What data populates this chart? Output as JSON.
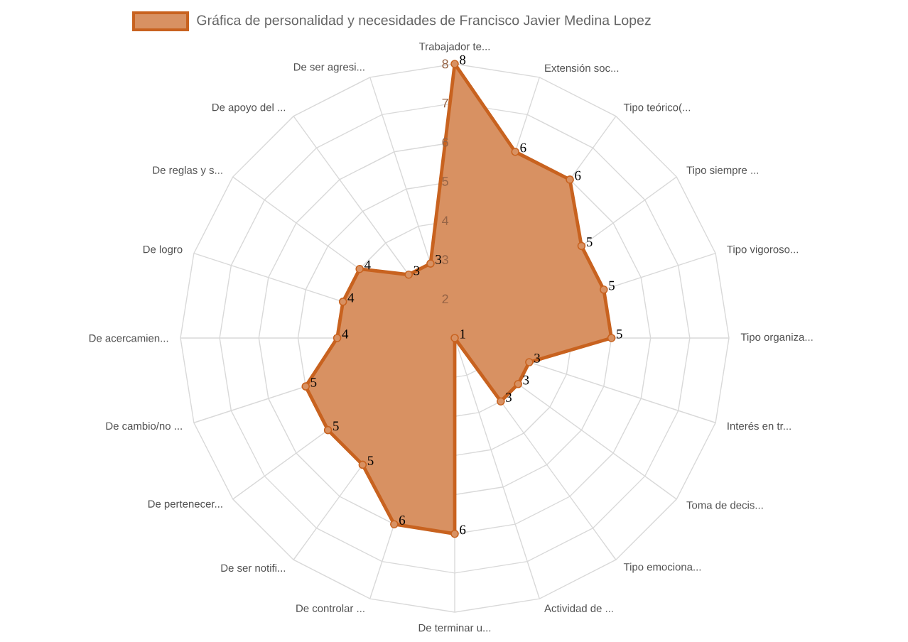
{
  "chart_data": {
    "type": "radar",
    "categories": [
      "Trabajador te...",
      "Extensión soc...",
      "Tipo teórico(...",
      "Tipo siempre ...",
      "Tipo vigoroso...",
      "Tipo organiza...",
      "Interés en tr...",
      "Toma de decis...",
      "Tipo emociona...",
      "Actividad de ...",
      "De terminar u...",
      "De controlar ...",
      "De ser notifi...",
      "De pertenecer...",
      "De cambio/no ...",
      "De acercamien...",
      "De logro",
      "De reglas y s...",
      "De apoyo del ...",
      "De ser agresi..."
    ],
    "series": [
      {
        "name": "Gráfica de personalidad y necesidades de Francisco Javier Medina Lopez",
        "color": "#c8621f",
        "values": [
          8,
          6,
          6,
          5,
          5,
          5,
          3,
          3,
          3,
          1,
          6,
          6,
          5,
          5,
          5,
          4,
          4,
          4,
          3,
          3
        ]
      }
    ],
    "ylim": [
      1,
      8
    ],
    "yticks": [
      2,
      3,
      4,
      5,
      6,
      7,
      8
    ],
    "grid": true,
    "legend": "top",
    "marker": "circle",
    "data_labels": true
  }
}
